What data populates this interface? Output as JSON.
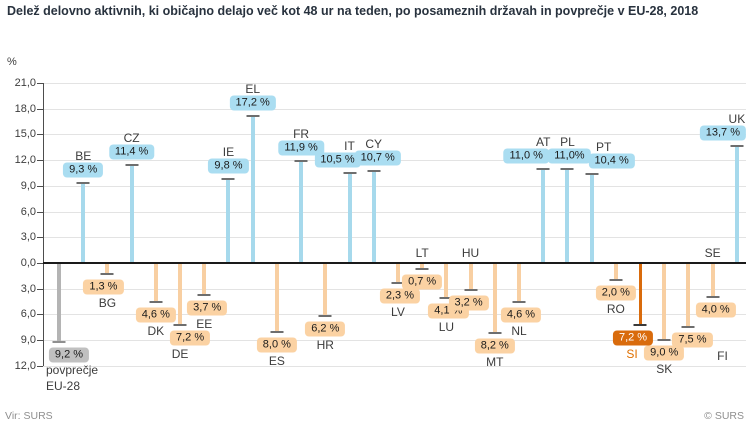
{
  "title": "Delež delovno aktivnih, ki običajno delajo več kot 48 ur na teden, po posameznih državah in povprečje v EU-28, 2018",
  "unit_label": "%",
  "source": "Vir: SURS",
  "copyright": "© SURS",
  "chart_data": {
    "type": "bar",
    "variant": "lollipop-deviation",
    "title": "Delež delovno aktivnih, ki običajno delajo več kot 48 ur na teden, po posameznih državah in povprečje v EU-28, 2018",
    "ylabel": "%",
    "grid": true,
    "axis_note": "countries above EU-28 average (9,2 %) plotted upward in blue, below average downward in orange; stem length equals the value itself",
    "ylim_up": 21,
    "ylim_down": 12,
    "y_ticks": [
      {
        "v": 21,
        "label": "21,0"
      },
      {
        "v": 18,
        "label": "18,0"
      },
      {
        "v": 15,
        "label": "15,0"
      },
      {
        "v": 12,
        "label": "12,0"
      },
      {
        "v": 9,
        "label": "9,0"
      },
      {
        "v": 6,
        "label": "6,0"
      },
      {
        "v": 3,
        "label": "3,0"
      },
      {
        "v": 0,
        "label": "0,0"
      },
      {
        "v": -3,
        "label": "3,0"
      },
      {
        "v": -6,
        "label": "6,0"
      },
      {
        "v": -9,
        "label": "9,0"
      },
      {
        "v": -12,
        "label": "12,0"
      }
    ],
    "colors": {
      "above_stem": "#a6d9ec",
      "above_badge": "#aaddf1",
      "below_stem": "#f8cfa2",
      "below_badge": "#fbd2a3",
      "highlight_stem": "#d96b0c",
      "highlight_badge": "#d96b0c",
      "highlight_badge_text": "#ffffff",
      "highlight_code_text": "#e07000",
      "average_stem": "#b4b4b4",
      "average_badge": "#c0c0c0",
      "cap": "#6e6e6e",
      "cap_highlight": "#3a3a3a",
      "cap_average": "#8f8f8f"
    },
    "items": [
      {
        "key": "eu28",
        "code": "povprečje EU-28",
        "code_lines": [
          "povprečje",
          "EU-28"
        ],
        "value": 9.2,
        "value_label": "9,2 %",
        "direction": "down",
        "group": "average",
        "badge_dx": 10
      },
      {
        "key": "be",
        "code": "BE",
        "value": 9.3,
        "value_label": "9,3 %",
        "direction": "up",
        "group": "above"
      },
      {
        "key": "bg",
        "code": "BG",
        "value": 1.3,
        "value_label": "1,3 %",
        "direction": "down",
        "group": "below",
        "badge_dx": -4
      },
      {
        "key": "cz",
        "code": "CZ",
        "value": 11.4,
        "value_label": "11,4 %",
        "direction": "up",
        "group": "above"
      },
      {
        "key": "dk",
        "code": "DK",
        "value": 4.6,
        "value_label": "4,6 %",
        "direction": "down",
        "group": "below"
      },
      {
        "key": "de",
        "code": "DE",
        "value": 7.2,
        "value_label": "7,2 %",
        "direction": "down",
        "group": "below",
        "badge_dx": 10
      },
      {
        "key": "ee",
        "code": "EE",
        "value": 3.7,
        "value_label": "3,7 %",
        "direction": "down",
        "group": "below",
        "badge_dx": 3
      },
      {
        "key": "ie",
        "code": "IE",
        "value": 9.8,
        "value_label": "9,8 %",
        "direction": "up",
        "group": "above"
      },
      {
        "key": "el",
        "code": "EL",
        "value": 17.2,
        "value_label": "17,2 %",
        "direction": "up",
        "group": "above"
      },
      {
        "key": "es",
        "code": "ES",
        "value": 8.0,
        "value_label": "8,0 %",
        "direction": "down",
        "group": "below"
      },
      {
        "key": "fr",
        "code": "FR",
        "value": 11.9,
        "value_label": "11,9 %",
        "direction": "up",
        "group": "above"
      },
      {
        "key": "hr",
        "code": "HR",
        "value": 6.2,
        "value_label": "6,2 %",
        "direction": "down",
        "group": "below"
      },
      {
        "key": "it",
        "code": "IT",
        "value": 10.5,
        "value_label": "10,5 %",
        "direction": "up",
        "group": "above",
        "badge_dx": -12
      },
      {
        "key": "cy",
        "code": "CY",
        "value": 10.7,
        "value_label": "10,7 %",
        "direction": "up",
        "group": "above",
        "badge_dx": 4
      },
      {
        "key": "lv",
        "code": "LV",
        "value": 2.3,
        "value_label": "2,3 %",
        "direction": "down",
        "group": "below",
        "badge_dx": 2
      },
      {
        "key": "lt",
        "code": "LT",
        "value": 0.7,
        "value_label": "0,7 %",
        "direction": "down",
        "group": "below",
        "code_at_axis": true
      },
      {
        "key": "lu",
        "code": "LU",
        "value": 4.1,
        "value_label": "4,1 %",
        "direction": "down",
        "group": "below",
        "badge_dx": 2
      },
      {
        "key": "hu",
        "code": "HU",
        "value": 3.2,
        "value_label": "3,2 %",
        "direction": "down",
        "group": "below",
        "badge_dx": -2,
        "code_at_axis": true
      },
      {
        "key": "mt",
        "code": "MT",
        "value": 8.2,
        "value_label": "8,2 %",
        "direction": "down",
        "group": "below"
      },
      {
        "key": "nl",
        "code": "NL",
        "value": 4.6,
        "value_label": "4,6 %",
        "direction": "down",
        "group": "below",
        "badge_dx": 2
      },
      {
        "key": "at",
        "code": "AT",
        "value": 11.0,
        "value_label": "11,0 %",
        "direction": "up",
        "group": "above",
        "badge_dx": -17
      },
      {
        "key": "pl",
        "code": "PL",
        "value": 11.0,
        "value_label": "11,0%",
        "direction": "up",
        "group": "above",
        "badge_dx": 2
      },
      {
        "key": "pt",
        "code": "PT",
        "value": 10.4,
        "value_label": "10,4 %",
        "direction": "up",
        "group": "above",
        "badge_dx": 20,
        "code_dx": 12
      },
      {
        "key": "ro",
        "code": "RO",
        "value": 2.0,
        "value_label": "2,0 %",
        "direction": "down",
        "group": "below"
      },
      {
        "key": "si",
        "code": "SI",
        "value": 7.2,
        "value_label": "7,2 %",
        "direction": "down",
        "group": "highlight",
        "badge_dx": -7,
        "code_dx": -8
      },
      {
        "key": "sk",
        "code": "SK",
        "value": 9.0,
        "value_label": "9,0 %",
        "direction": "down",
        "group": "below"
      },
      {
        "key": "fi",
        "code": "FI",
        "value": 7.5,
        "value_label": "7,5 %",
        "direction": "down",
        "group": "below",
        "badge_dx": 4,
        "code_dx": 34
      },
      {
        "key": "se",
        "code": "SE",
        "value": 4.0,
        "value_label": "4,0 %",
        "direction": "down",
        "group": "below",
        "badge_dx": 3,
        "code_at_axis": true
      },
      {
        "key": "uk",
        "code": "UK",
        "value": 13.7,
        "value_label": "13,7 %",
        "direction": "up",
        "group": "above",
        "badge_dx": -14
      }
    ]
  }
}
